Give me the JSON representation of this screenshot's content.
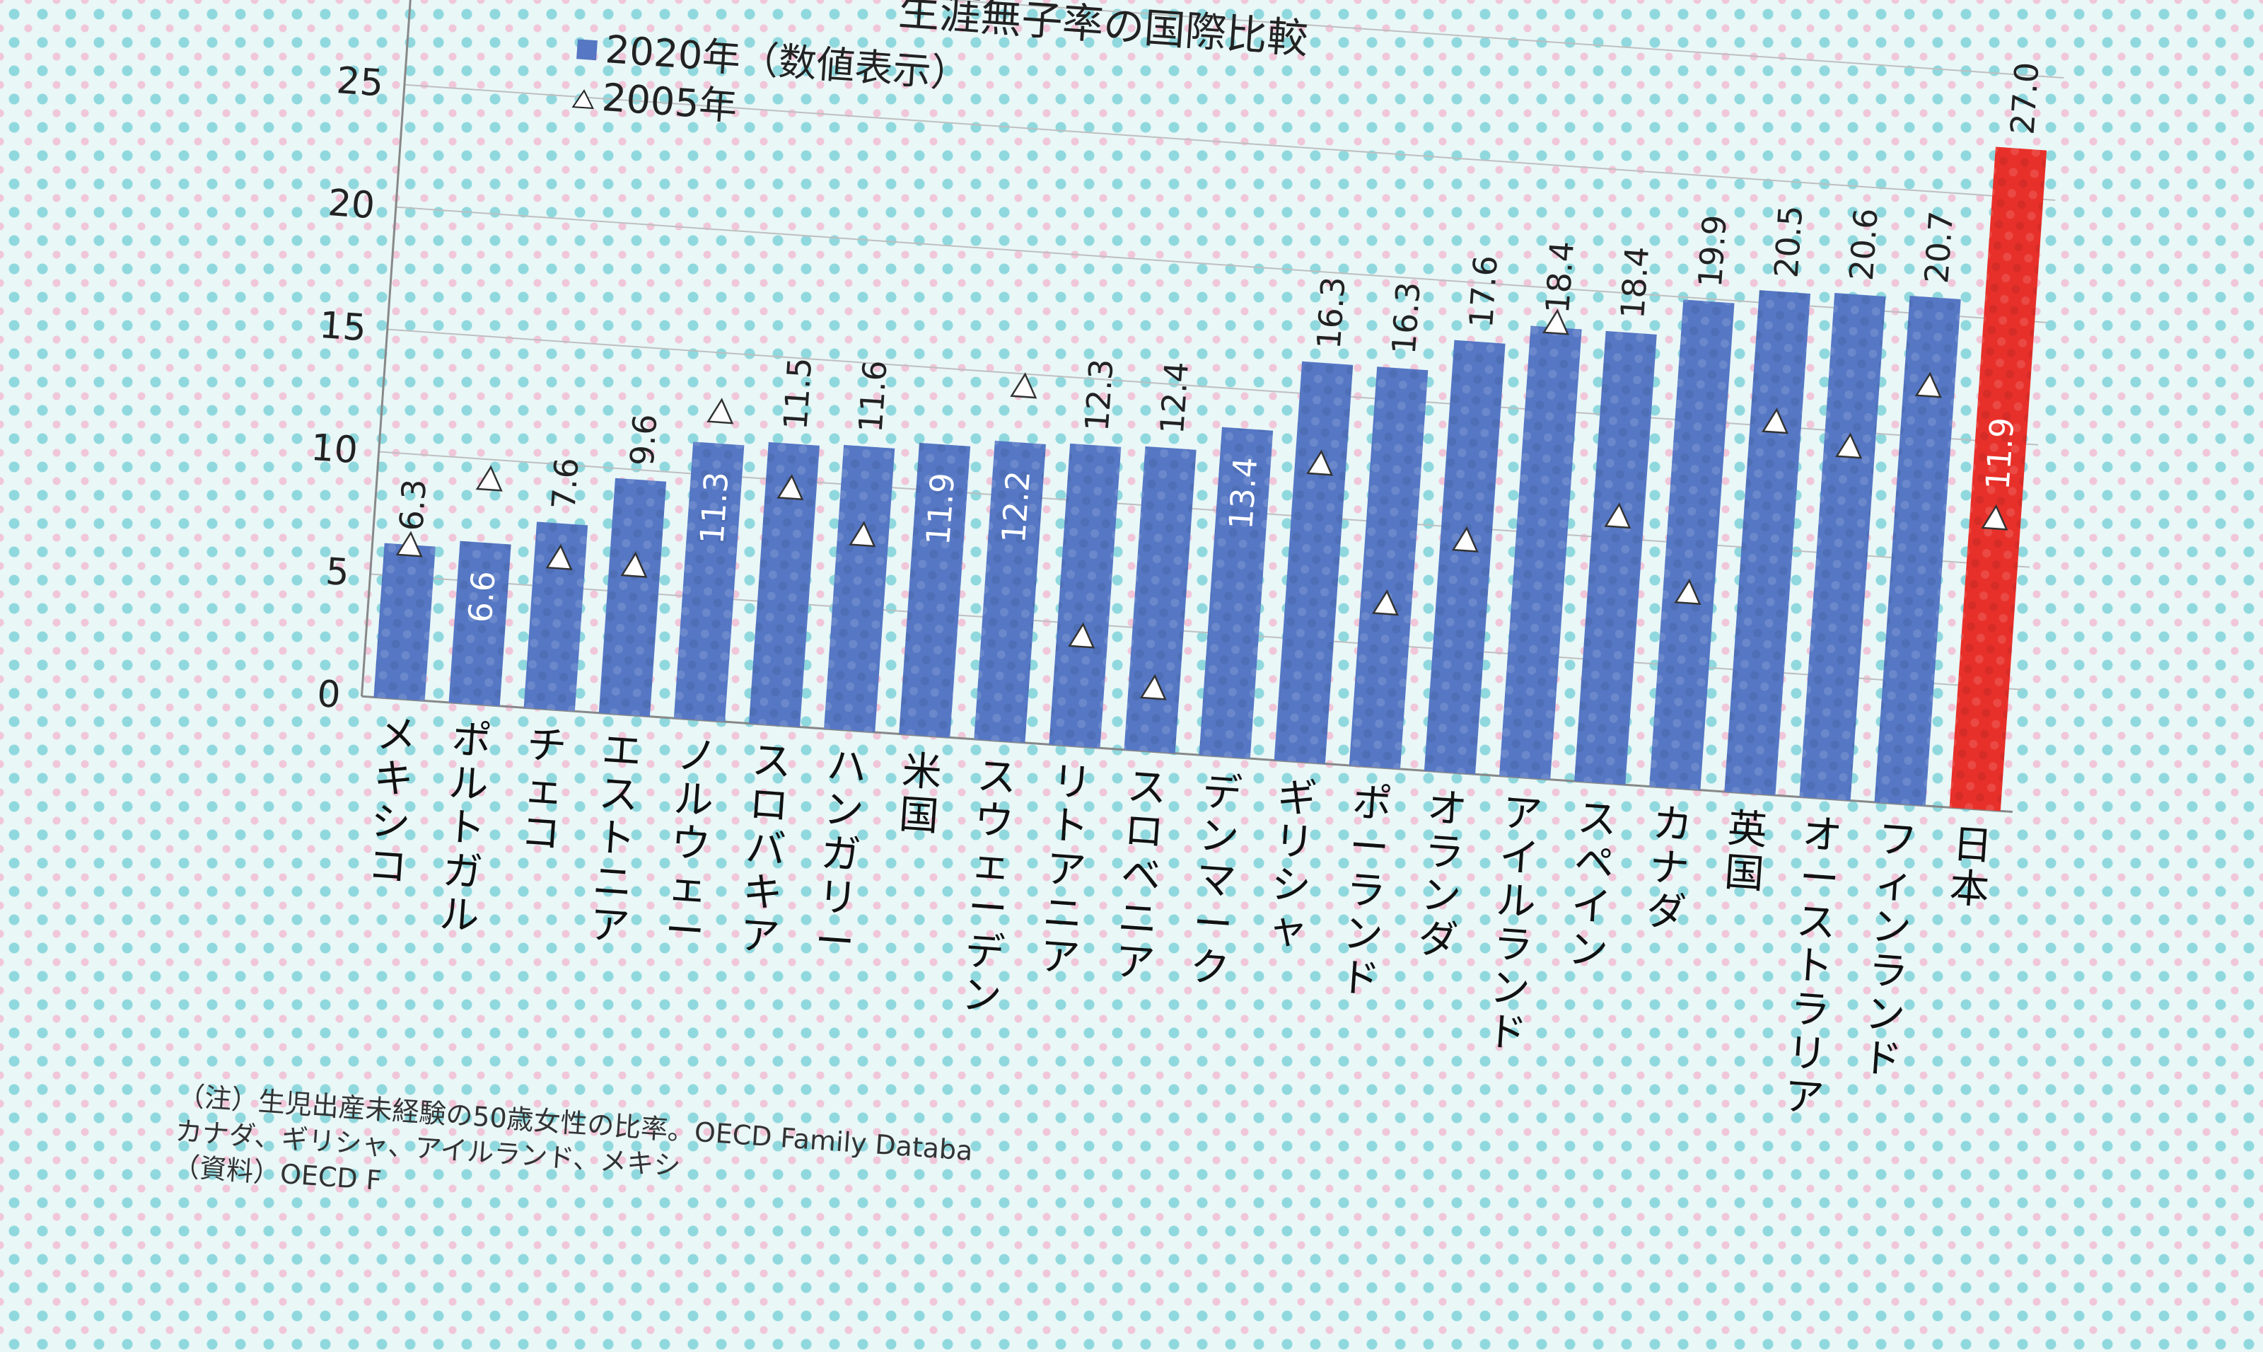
{
  "chart_data": {
    "type": "bar",
    "title": "生涯無子率の国際比較",
    "legend": [
      {
        "marker": "■",
        "label": "2020年（数値表示）"
      },
      {
        "marker": "△",
        "label": "2005年"
      }
    ],
    "ylim": [
      0,
      30
    ],
    "yticks": [
      0,
      5,
      10,
      15,
      20,
      25,
      30
    ],
    "grid": true,
    "categories": [
      "メキシコ",
      "ポルトガル",
      "チェコ",
      "エストニア",
      "ノルウェー",
      "スロバキア",
      "ハンガリー",
      "米国",
      "スウェーデン",
      "リトアニア",
      "スロベニア",
      "デンマーク",
      "ギリシャ",
      "ポーランド",
      "オランダ",
      "アイルランド",
      "スペイン",
      "カナダ",
      "英国",
      "オーストラリア",
      "フィンランド",
      "日本"
    ],
    "series": [
      {
        "name": "2020年（数値表示）",
        "values": [
          6.3,
          6.6,
          7.6,
          9.6,
          11.3,
          11.5,
          11.6,
          11.9,
          12.2,
          12.3,
          12.4,
          13.4,
          16.3,
          16.3,
          17.6,
          18.4,
          18.4,
          19.9,
          20.5,
          20.6,
          20.7,
          27.0
        ],
        "labels": [
          "6.3",
          "6.6",
          "7.6",
          "9.6",
          "11.3",
          "11.5",
          "11.6",
          "11.9",
          "12.2",
          "12.3",
          "12.4",
          "13.4",
          "16.3",
          "16.3",
          "17.6",
          "18.4",
          "18.4",
          "19.9",
          "20.5",
          "20.6",
          "20.7",
          "27.0"
        ],
        "label_inside": [
          false,
          true,
          false,
          false,
          true,
          false,
          false,
          true,
          true,
          false,
          false,
          true,
          false,
          false,
          false,
          false,
          false,
          false,
          false,
          false,
          false,
          false
        ],
        "color": "#5577c4"
      },
      {
        "name": "2005年",
        "values": [
          6.3,
          9.2,
          6.2,
          6.1,
          12.6,
          9.7,
          8.0,
          null,
          14.5,
          4.5,
          2.6,
          null,
          12.2,
          6.7,
          9.5,
          18.6,
          10.9,
          8.0,
          15.2,
          14.4,
          17.1,
          11.9
        ],
        "labels": [
          null,
          null,
          null,
          null,
          null,
          null,
          null,
          null,
          null,
          null,
          null,
          null,
          null,
          null,
          null,
          null,
          null,
          null,
          null,
          null,
          null,
          "11.9"
        ],
        "marker": "triangle"
      }
    ],
    "highlight": {
      "category": "日本",
      "color": "#e8302a"
    }
  },
  "notes": [
    "（注）生児出産未経験の50歳女性の比率。OECD Family Databa",
    "カナダ、ギリシャ、アイルランド、メキシ",
    "（資料）OECD F"
  ]
}
